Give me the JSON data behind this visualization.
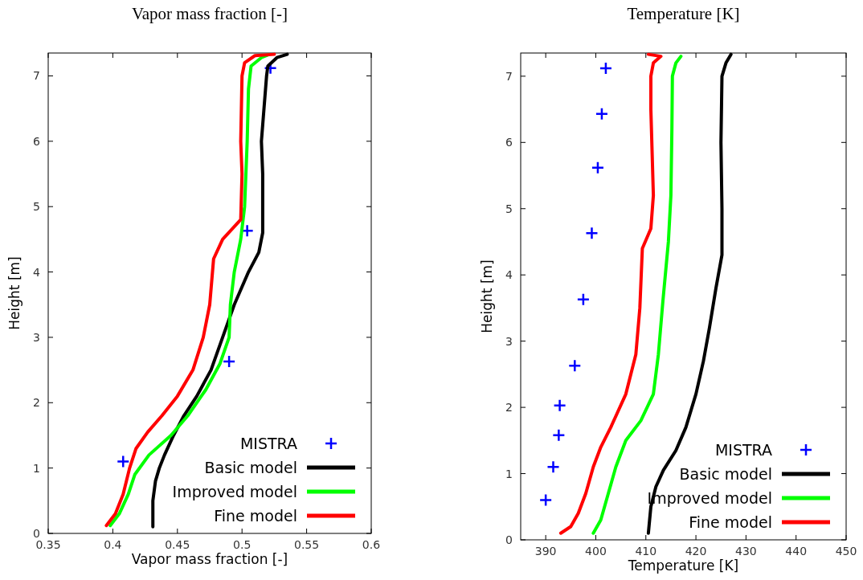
{
  "chart_data": [
    {
      "type": "line",
      "title": "Vapor mass fraction [-]",
      "xlabel": "Vapor mass fraction [-]",
      "ylabel": "Height [m]",
      "xlim": [
        0.35,
        0.6
      ],
      "xticks": [
        0.35,
        0.4,
        0.45,
        0.5,
        0.55,
        0.6
      ],
      "ylim": [
        0,
        7.35
      ],
      "yticks": [
        0,
        1,
        2,
        3,
        4,
        5,
        6,
        7
      ],
      "grid": false,
      "legend": "bottom right",
      "series": [
        {
          "name": "MISTRA",
          "type": "scatter",
          "marker": "cross",
          "color": "#0000ff",
          "x": [
            0.408,
            0.49,
            0.504,
            0.522
          ],
          "values": [
            1.1,
            2.63,
            4.63,
            7.12
          ]
        },
        {
          "name": "Basic model",
          "type": "line",
          "color": "#000000",
          "x": [
            0.431,
            0.431,
            0.433,
            0.436,
            0.44,
            0.447,
            0.455,
            0.465,
            0.476,
            0.485,
            0.494,
            0.505,
            0.513,
            0.516,
            0.516,
            0.515,
            0.517,
            0.519,
            0.52,
            0.527,
            0.535
          ],
          "values": [
            0.1,
            0.5,
            0.8,
            1.0,
            1.2,
            1.5,
            1.8,
            2.1,
            2.5,
            3.0,
            3.5,
            4.0,
            4.3,
            4.6,
            5.5,
            6.0,
            6.5,
            7.0,
            7.15,
            7.28,
            7.33
          ]
        },
        {
          "name": "Improved model",
          "type": "line",
          "color": "#00ff00",
          "x": [
            0.398,
            0.405,
            0.412,
            0.417,
            0.428,
            0.445,
            0.458,
            0.472,
            0.483,
            0.49,
            0.491,
            0.494,
            0.499,
            0.502,
            0.504,
            0.505,
            0.507,
            0.515,
            0.52
          ],
          "values": [
            0.12,
            0.3,
            0.6,
            0.9,
            1.2,
            1.5,
            1.8,
            2.2,
            2.6,
            3.0,
            3.5,
            4.0,
            4.5,
            5.0,
            6.0,
            6.8,
            7.15,
            7.28,
            7.32
          ]
        },
        {
          "name": "Fine model",
          "type": "line",
          "color": "#ff0000",
          "x": [
            0.395,
            0.402,
            0.408,
            0.413,
            0.418,
            0.427,
            0.438,
            0.45,
            0.462,
            0.47,
            0.475,
            0.478,
            0.485,
            0.499,
            0.5,
            0.499,
            0.5,
            0.502,
            0.51,
            0.525
          ],
          "values": [
            0.12,
            0.3,
            0.6,
            1.0,
            1.3,
            1.55,
            1.8,
            2.1,
            2.5,
            3.0,
            3.5,
            4.2,
            4.5,
            4.8,
            5.5,
            6.0,
            7.0,
            7.2,
            7.31,
            7.33
          ]
        }
      ]
    },
    {
      "type": "line",
      "title": "Temperature [K]",
      "xlabel": "Temperature [K]",
      "ylabel": "Height [m]",
      "xlim": [
        385,
        450
      ],
      "xticks": [
        390,
        400,
        410,
        420,
        430,
        440,
        450
      ],
      "ylim": [
        0,
        7.35
      ],
      "yticks": [
        0,
        1,
        2,
        3,
        4,
        5,
        6,
        7
      ],
      "grid": false,
      "legend": "bottom right",
      "series": [
        {
          "name": "MISTRA",
          "type": "scatter",
          "marker": "cross",
          "color": "#0000ff",
          "x": [
            390,
            391.5,
            392.6,
            392.8,
            395.8,
            397.5,
            399.2,
            400.4,
            401.2,
            402
          ],
          "values": [
            0.6,
            1.1,
            1.58,
            2.03,
            2.63,
            3.63,
            4.63,
            5.62,
            6.43,
            7.12
          ]
        },
        {
          "name": "Basic model",
          "type": "line",
          "color": "#000000",
          "x": [
            410.5,
            411,
            412,
            413.5,
            416,
            418,
            420,
            421.5,
            422.7,
            424,
            425.2,
            425.2,
            425,
            425.2,
            426,
            427
          ],
          "values": [
            0.1,
            0.5,
            0.8,
            1.05,
            1.35,
            1.7,
            2.2,
            2.7,
            3.2,
            3.8,
            4.3,
            5,
            6,
            7,
            7.2,
            7.33
          ]
        },
        {
          "name": "Improved model",
          "type": "line",
          "color": "#00ff00",
          "x": [
            399.5,
            401,
            402.5,
            404,
            406,
            409,
            411.5,
            412.5,
            413.4,
            414.5,
            415,
            415.2,
            415.3,
            416,
            417
          ],
          "values": [
            0.1,
            0.3,
            0.7,
            1.1,
            1.5,
            1.8,
            2.2,
            2.8,
            3.6,
            4.5,
            5.2,
            6.2,
            7.0,
            7.2,
            7.3
          ]
        },
        {
          "name": "Fine model",
          "type": "line",
          "color": "#ff0000",
          "x": [
            393,
            395,
            396.5,
            398,
            399.5,
            401,
            403,
            406,
            408,
            408.8,
            409.3,
            411,
            411.5,
            411,
            411,
            411.5,
            413,
            410.5
          ],
          "values": [
            0.1,
            0.2,
            0.4,
            0.7,
            1.1,
            1.4,
            1.7,
            2.2,
            2.8,
            3.5,
            4.4,
            4.7,
            5.2,
            6.5,
            7.0,
            7.2,
            7.3,
            7.33
          ]
        }
      ]
    }
  ]
}
